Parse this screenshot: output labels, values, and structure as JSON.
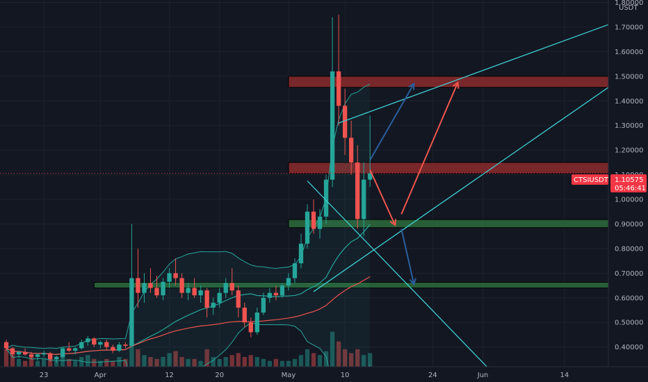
{
  "chart_data": {
    "type": "candlestick",
    "symbol": "CTSIUSDT",
    "quote_currency": "USDT",
    "y_ticks": [
      "1.80000",
      "1.70000",
      "1.60000",
      "1.50000",
      "1.40000",
      "1.30000",
      "1.20000",
      "1.10000",
      "1.00000",
      "0.90000",
      "0.80000",
      "0.70000",
      "0.60000",
      "0.50000",
      "0.40000"
    ],
    "x_ticks": [
      {
        "label": "23",
        "date": "2021-03-23"
      },
      {
        "label": "Apr",
        "date": "2021-04-01"
      },
      {
        "label": "12",
        "date": "2021-04-12"
      },
      {
        "label": "20",
        "date": "2021-04-20"
      },
      {
        "label": "May",
        "date": "2021-05-01"
      },
      {
        "label": "10",
        "date": "2021-05-10"
      },
      {
        "label": "24",
        "date": "2021-05-24"
      },
      {
        "label": "Jun",
        "date": "2021-06-01"
      },
      {
        "label": "14",
        "date": "2021-06-14"
      }
    ],
    "x_range": [
      "2021-03-16",
      "2021-06-21"
    ],
    "y_range": [
      0.32,
      1.81
    ],
    "last_price": 1.10575,
    "last_price_label": "1.10575",
    "countdown": "05:46:41",
    "colors": {
      "background": "#131722",
      "up": "#26a69a",
      "down": "#ef5350",
      "resistance_zone": "#8b2a2c",
      "support_zone": "#2d6b3b",
      "trendline": "#3ed0d6",
      "bullish_arrow": "#2a5f9e",
      "bearish_arrow": "#f0564e",
      "ma_fast": "#26a69a",
      "ma_slow": "#ef5350",
      "price_tag": "#f23645"
    },
    "zones": [
      {
        "kind": "resistance",
        "from_date": "2021-05-01",
        "to_date": "2021-06-21",
        "low": 1.455,
        "high": 1.5
      },
      {
        "kind": "resistance",
        "from_date": "2021-05-01",
        "to_date": "2021-06-21",
        "low": 1.105,
        "high": 1.15
      },
      {
        "kind": "support",
        "from_date": "2021-05-01",
        "to_date": "2021-06-21",
        "low": 0.885,
        "high": 0.918
      },
      {
        "kind": "support",
        "from_date": "2021-03-31",
        "to_date": "2021-06-21",
        "low": 0.64,
        "high": 0.663
      }
    ],
    "trendlines": [
      {
        "from": [
          "2021-05-05",
          0.625
        ],
        "to": [
          "2021-06-21",
          1.455
        ]
      },
      {
        "from": [
          "2021-05-09",
          1.31
        ],
        "to": [
          "2021-06-21",
          1.71
        ]
      },
      {
        "from": [
          "2021-05-04",
          1.075
        ],
        "to": [
          "2021-06-02",
          0.31
        ]
      }
    ],
    "arrows": [
      {
        "color": "bullish",
        "from": [
          "2021-05-14",
          1.16
        ],
        "to": [
          "2021-05-21",
          1.47
        ]
      },
      {
        "color": "bearish",
        "from": [
          "2021-05-14",
          1.12
        ],
        "to": [
          "2021-05-18",
          0.895
        ]
      },
      {
        "color": "bearish",
        "from": [
          "2021-05-19",
          0.94
        ],
        "to": [
          "2021-05-28",
          1.475
        ]
      },
      {
        "color": "bullish",
        "from": [
          "2021-05-19",
          0.88
        ],
        "to": [
          "2021-05-21",
          0.655
        ]
      }
    ],
    "candles": [
      [
        "2021-03-17",
        0.42,
        0.43,
        0.385,
        0.395
      ],
      [
        "2021-03-18",
        0.395,
        0.4,
        0.36,
        0.37
      ],
      [
        "2021-03-19",
        0.37,
        0.385,
        0.355,
        0.38
      ],
      [
        "2021-03-20",
        0.38,
        0.395,
        0.365,
        0.37
      ],
      [
        "2021-03-21",
        0.37,
        0.38,
        0.35,
        0.36
      ],
      [
        "2021-03-22",
        0.36,
        0.375,
        0.345,
        0.37
      ],
      [
        "2021-03-23",
        0.37,
        0.385,
        0.36,
        0.375
      ],
      [
        "2021-03-24",
        0.375,
        0.38,
        0.34,
        0.35
      ],
      [
        "2021-03-25",
        0.35,
        0.365,
        0.335,
        0.36
      ],
      [
        "2021-03-26",
        0.36,
        0.4,
        0.355,
        0.395
      ],
      [
        "2021-03-27",
        0.395,
        0.42,
        0.38,
        0.385
      ],
      [
        "2021-03-28",
        0.385,
        0.4,
        0.37,
        0.395
      ],
      [
        "2021-03-29",
        0.395,
        0.43,
        0.39,
        0.42
      ],
      [
        "2021-03-30",
        0.42,
        0.445,
        0.405,
        0.435
      ],
      [
        "2021-03-31",
        0.435,
        0.44,
        0.4,
        0.41
      ],
      [
        "2021-04-01",
        0.41,
        0.425,
        0.395,
        0.42
      ],
      [
        "2021-04-02",
        0.42,
        0.43,
        0.39,
        0.4
      ],
      [
        "2021-04-03",
        0.4,
        0.41,
        0.375,
        0.385
      ],
      [
        "2021-04-04",
        0.385,
        0.42,
        0.38,
        0.41
      ],
      [
        "2021-04-05",
        0.41,
        0.42,
        0.395,
        0.405
      ],
      [
        "2021-04-06",
        0.405,
        0.9,
        0.4,
        0.68
      ],
      [
        "2021-04-07",
        0.68,
        0.8,
        0.56,
        0.62
      ],
      [
        "2021-04-08",
        0.62,
        0.7,
        0.58,
        0.66
      ],
      [
        "2021-04-09",
        0.66,
        0.72,
        0.62,
        0.64
      ],
      [
        "2021-04-10",
        0.64,
        0.69,
        0.6,
        0.61
      ],
      [
        "2021-04-11",
        0.61,
        0.68,
        0.59,
        0.665
      ],
      [
        "2021-04-12",
        0.665,
        0.72,
        0.64,
        0.7
      ],
      [
        "2021-04-13",
        0.7,
        0.76,
        0.65,
        0.68
      ],
      [
        "2021-04-14",
        0.68,
        0.7,
        0.6,
        0.62
      ],
      [
        "2021-04-15",
        0.62,
        0.66,
        0.59,
        0.64
      ],
      [
        "2021-04-16",
        0.64,
        0.68,
        0.6,
        0.61
      ],
      [
        "2021-04-17",
        0.61,
        0.65,
        0.58,
        0.63
      ],
      [
        "2021-04-18",
        0.63,
        0.64,
        0.52,
        0.56
      ],
      [
        "2021-04-19",
        0.56,
        0.6,
        0.53,
        0.58
      ],
      [
        "2021-04-20",
        0.58,
        0.64,
        0.56,
        0.62
      ],
      [
        "2021-04-21",
        0.62,
        0.68,
        0.6,
        0.66
      ],
      [
        "2021-04-22",
        0.66,
        0.72,
        0.61,
        0.63
      ],
      [
        "2021-04-23",
        0.63,
        0.65,
        0.52,
        0.56
      ],
      [
        "2021-04-24",
        0.56,
        0.58,
        0.48,
        0.5
      ],
      [
        "2021-04-25",
        0.5,
        0.52,
        0.44,
        0.46
      ],
      [
        "2021-04-26",
        0.46,
        0.56,
        0.45,
        0.54
      ],
      [
        "2021-04-27",
        0.54,
        0.62,
        0.53,
        0.6
      ],
      [
        "2021-04-28",
        0.6,
        0.64,
        0.58,
        0.62
      ],
      [
        "2021-04-29",
        0.62,
        0.65,
        0.59,
        0.61
      ],
      [
        "2021-04-30",
        0.61,
        0.66,
        0.6,
        0.65
      ],
      [
        "2021-05-01",
        0.65,
        0.7,
        0.63,
        0.68
      ],
      [
        "2021-05-02",
        0.68,
        0.76,
        0.66,
        0.74
      ],
      [
        "2021-05-03",
        0.74,
        0.86,
        0.72,
        0.82
      ],
      [
        "2021-05-04",
        0.82,
        0.98,
        0.8,
        0.95
      ],
      [
        "2021-05-05",
        0.95,
        1.0,
        0.86,
        0.88
      ],
      [
        "2021-05-06",
        0.88,
        0.96,
        0.84,
        0.93
      ],
      [
        "2021-05-07",
        0.93,
        1.1,
        0.9,
        1.08
      ],
      [
        "2021-05-08",
        1.08,
        1.74,
        1.05,
        1.52
      ],
      [
        "2021-05-09",
        1.52,
        1.75,
        1.3,
        1.38
      ],
      [
        "2021-05-10",
        1.38,
        1.45,
        1.18,
        1.25
      ],
      [
        "2021-05-11",
        1.25,
        1.32,
        1.1,
        1.15
      ],
      [
        "2021-05-12",
        1.15,
        1.22,
        0.88,
        0.92
      ],
      [
        "2021-05-13",
        0.92,
        1.15,
        0.85,
        1.08
      ],
      [
        "2021-05-14",
        1.08,
        1.34,
        1.05,
        1.106
      ]
    ],
    "volumes": [
      [
        "2021-03-17",
        0.9
      ],
      [
        "2021-03-18",
        0.6
      ],
      [
        "2021-03-19",
        0.4
      ],
      [
        "2021-03-20",
        0.3
      ],
      [
        "2021-03-21",
        0.5
      ],
      [
        "2021-03-22",
        0.3
      ],
      [
        "2021-03-23",
        0.4
      ],
      [
        "2021-03-24",
        0.5
      ],
      [
        "2021-03-25",
        0.3
      ],
      [
        "2021-03-26",
        0.6
      ],
      [
        "2021-03-27",
        0.4
      ],
      [
        "2021-03-28",
        0.3
      ],
      [
        "2021-03-29",
        0.5
      ],
      [
        "2021-03-30",
        0.6
      ],
      [
        "2021-03-31",
        0.4
      ],
      [
        "2021-04-01",
        0.3
      ],
      [
        "2021-04-02",
        0.4
      ],
      [
        "2021-04-03",
        0.3
      ],
      [
        "2021-04-04",
        0.5
      ],
      [
        "2021-04-05",
        0.4
      ],
      [
        "2021-04-06",
        1.6
      ],
      [
        "2021-04-07",
        0.9
      ],
      [
        "2021-04-08",
        0.6
      ],
      [
        "2021-04-09",
        0.5
      ],
      [
        "2021-04-10",
        0.4
      ],
      [
        "2021-04-11",
        0.5
      ],
      [
        "2021-04-12",
        0.7
      ],
      [
        "2021-04-13",
        0.8
      ],
      [
        "2021-04-14",
        0.5
      ],
      [
        "2021-04-15",
        0.4
      ],
      [
        "2021-04-16",
        0.4
      ],
      [
        "2021-04-17",
        0.3
      ],
      [
        "2021-04-18",
        0.9
      ],
      [
        "2021-04-19",
        0.5
      ],
      [
        "2021-04-20",
        0.4
      ],
      [
        "2021-04-21",
        0.5
      ],
      [
        "2021-04-22",
        0.6
      ],
      [
        "2021-04-23",
        0.7
      ],
      [
        "2021-04-24",
        0.5
      ],
      [
        "2021-04-25",
        0.6
      ],
      [
        "2021-04-26",
        0.5
      ],
      [
        "2021-04-27",
        0.4
      ],
      [
        "2021-04-28",
        0.3
      ],
      [
        "2021-04-29",
        0.4
      ],
      [
        "2021-04-30",
        0.3
      ],
      [
        "2021-05-01",
        0.3
      ],
      [
        "2021-05-02",
        0.4
      ],
      [
        "2021-05-03",
        0.6
      ],
      [
        "2021-05-04",
        0.9
      ],
      [
        "2021-05-05",
        0.7
      ],
      [
        "2021-05-06",
        0.6
      ],
      [
        "2021-05-07",
        0.8
      ],
      [
        "2021-05-08",
        1.8
      ],
      [
        "2021-05-09",
        1.3
      ],
      [
        "2021-05-10",
        0.9
      ],
      [
        "2021-05-11",
        0.7
      ],
      [
        "2021-05-12",
        0.9
      ],
      [
        "2021-05-13",
        0.6
      ],
      [
        "2021-05-14",
        0.7
      ]
    ]
  }
}
